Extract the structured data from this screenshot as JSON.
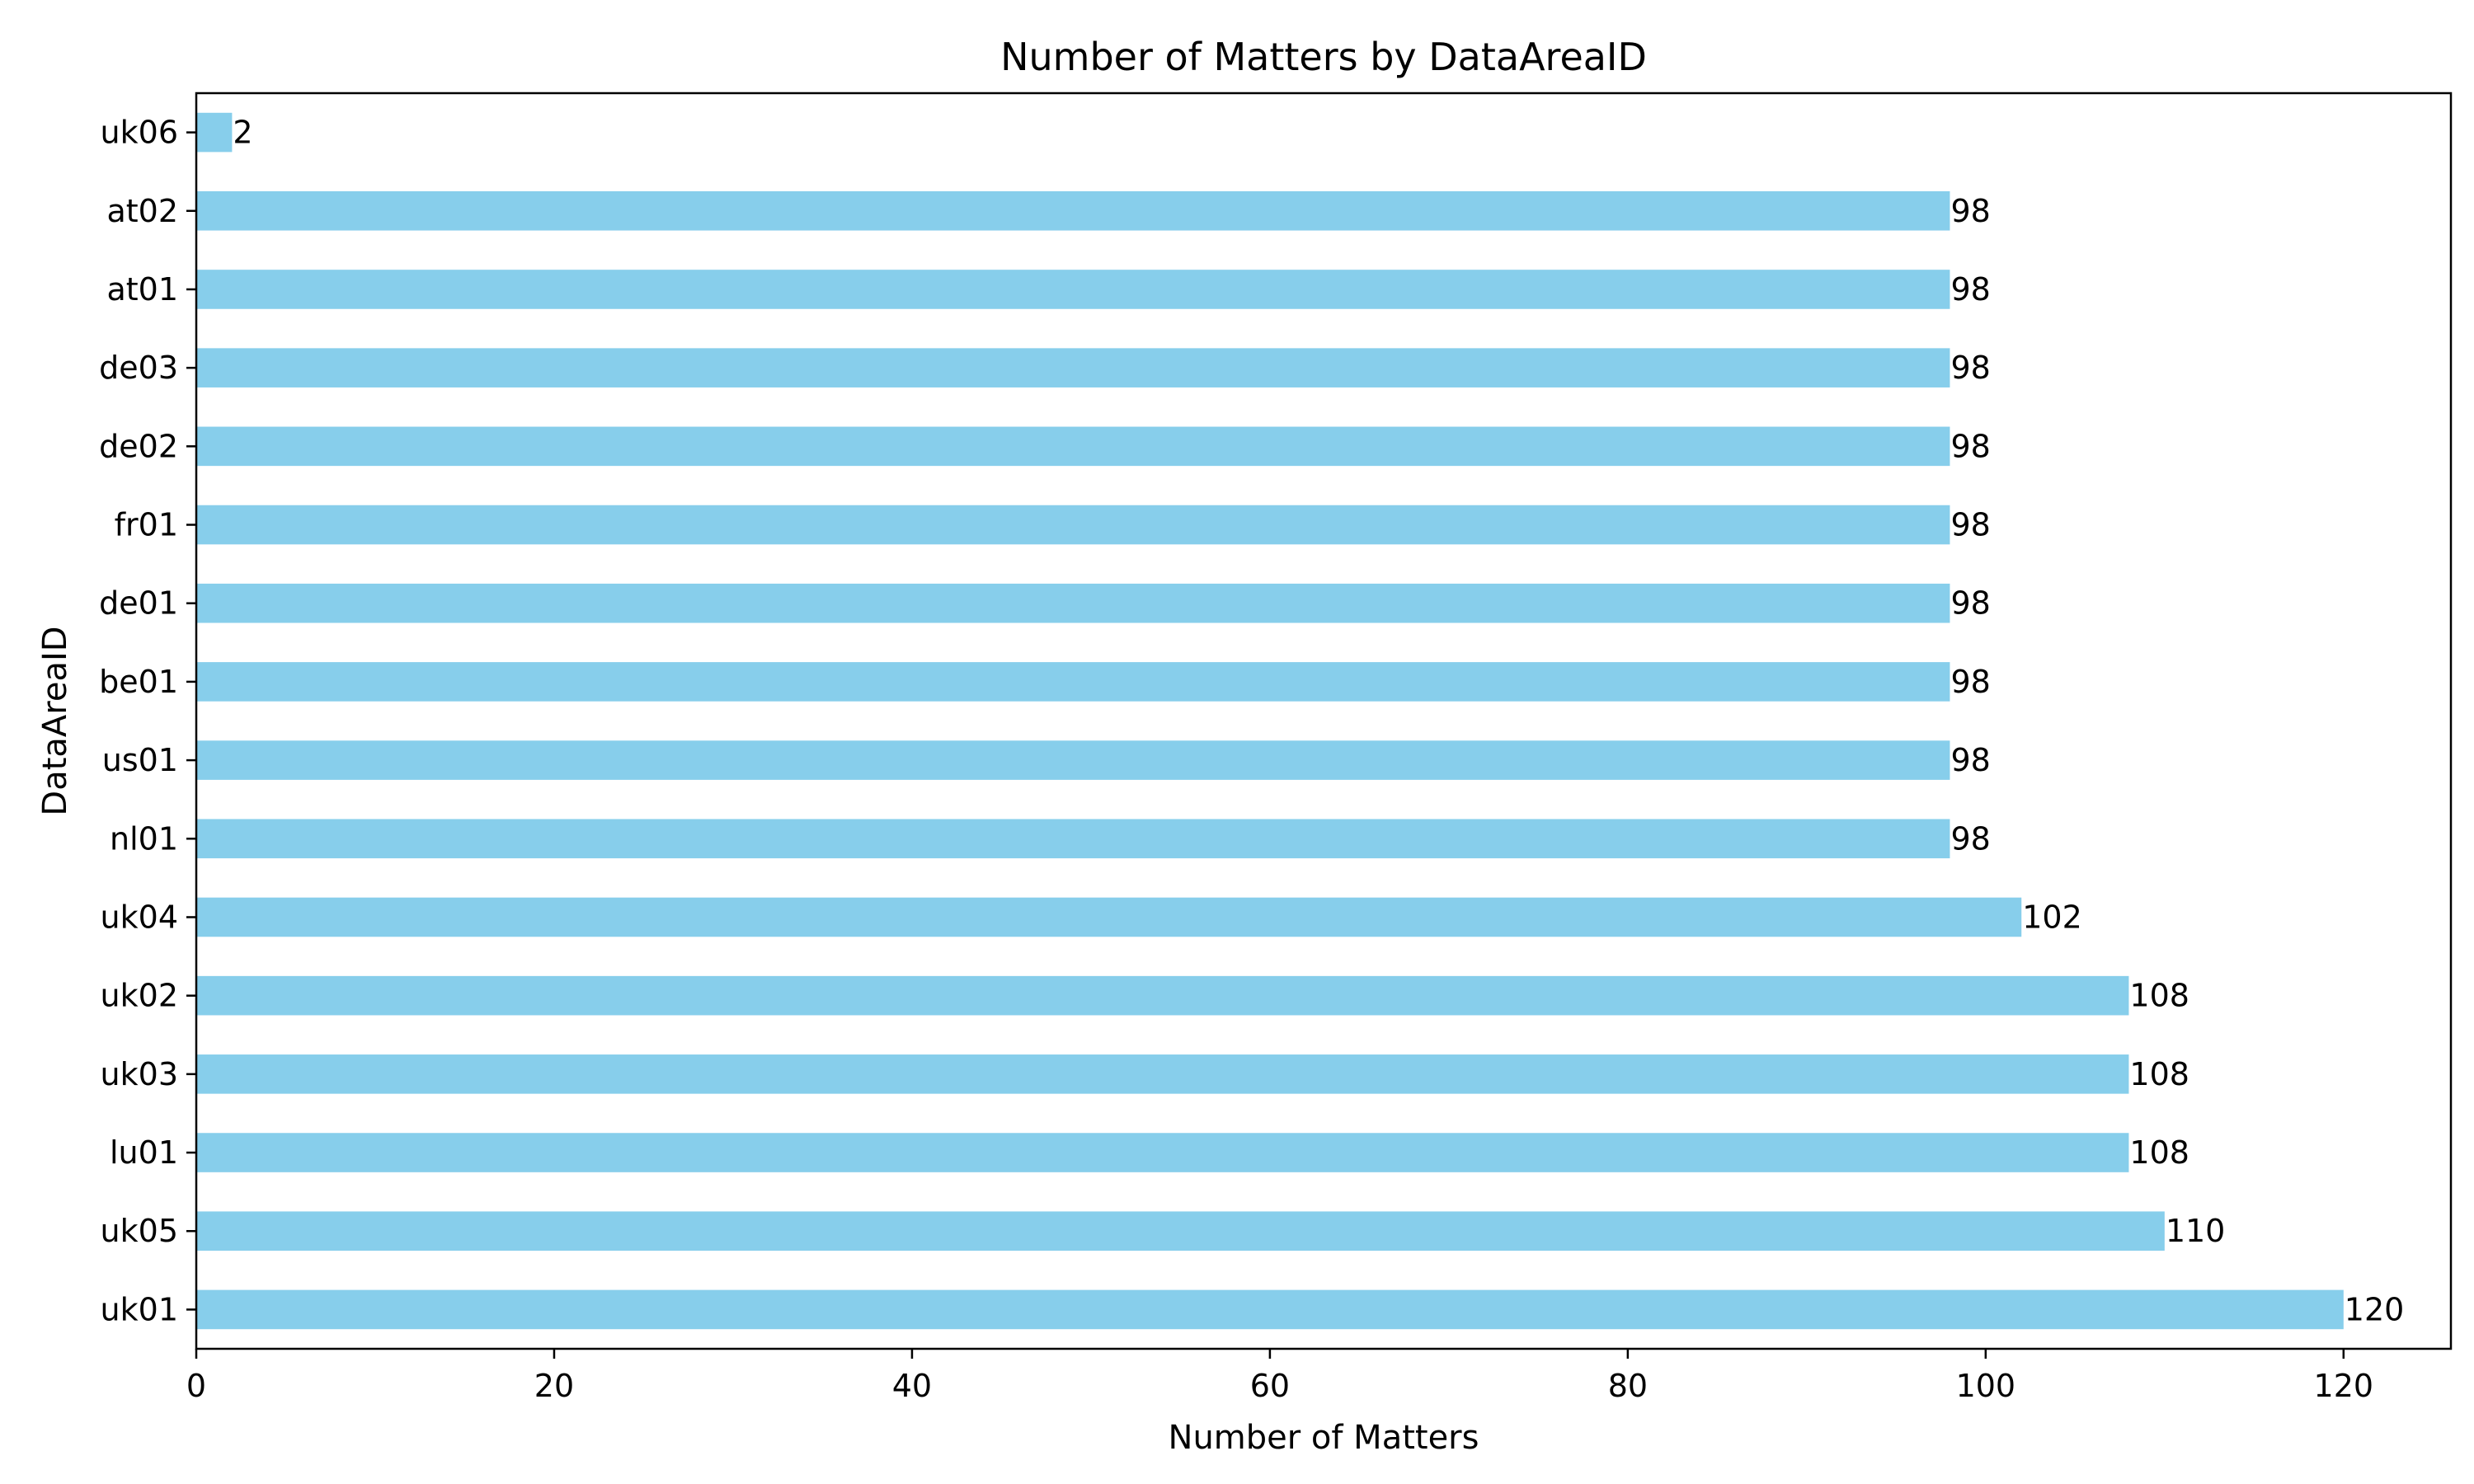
{
  "chart_data": {
    "type": "bar",
    "orientation": "horizontal",
    "title": "Number of Matters by DataAreaID",
    "xlabel": "Number of Matters",
    "ylabel": "DataAreaID",
    "xlim": [
      0,
      126
    ],
    "xticks": [
      0,
      20,
      40,
      60,
      80,
      100,
      120
    ],
    "grid": false,
    "legend": "none",
    "bar_color": "#87CEEB",
    "categories": [
      "uk01",
      "uk05",
      "lu01",
      "uk03",
      "uk02",
      "uk04",
      "nl01",
      "us01",
      "be01",
      "de01",
      "fr01",
      "de02",
      "de03",
      "at01",
      "at02",
      "uk06"
    ],
    "values": [
      120,
      110,
      108,
      108,
      108,
      102,
      98,
      98,
      98,
      98,
      98,
      98,
      98,
      98,
      98,
      2
    ]
  }
}
